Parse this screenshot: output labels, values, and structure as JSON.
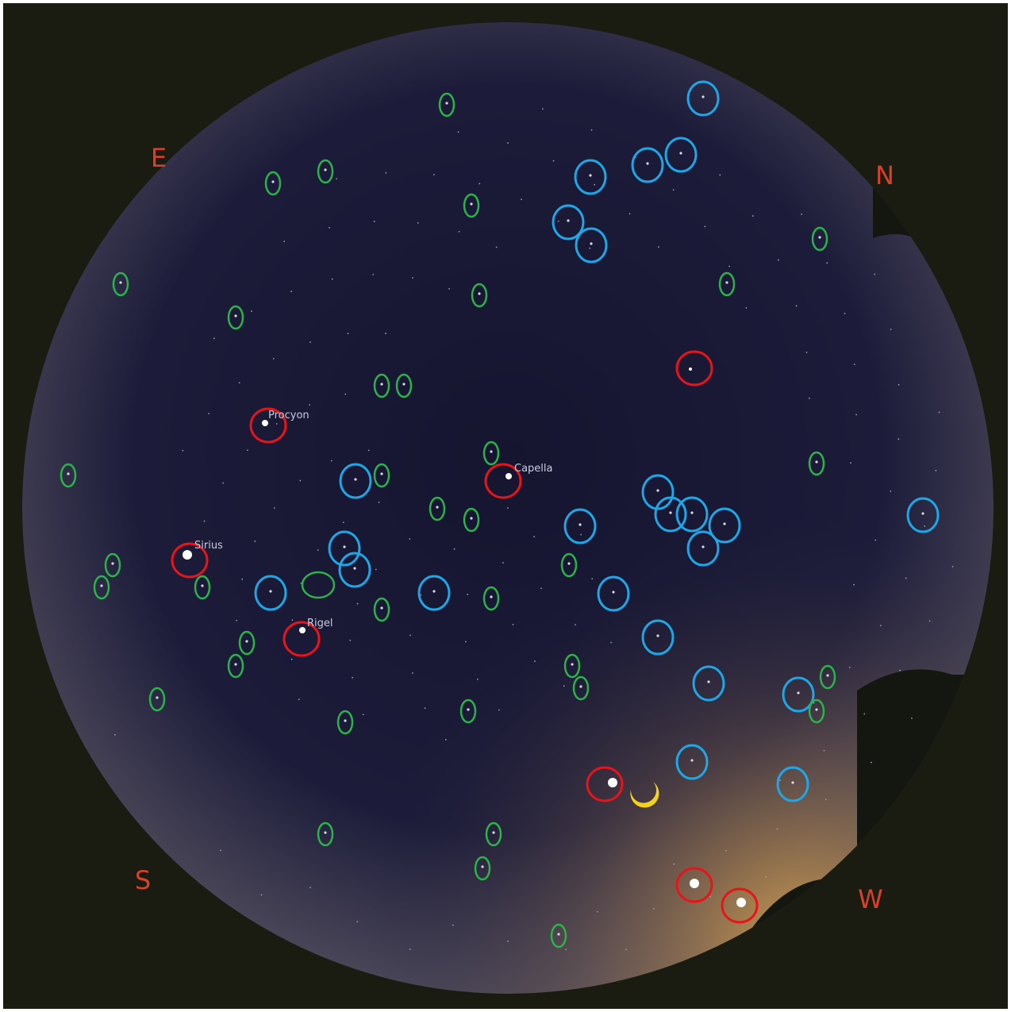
{
  "compass": {
    "east": "E",
    "north": "N",
    "south": "S",
    "west": "W"
  },
  "star_labels": [
    "Procyon",
    "Capella",
    "Sirius",
    "Rigel"
  ]
}
